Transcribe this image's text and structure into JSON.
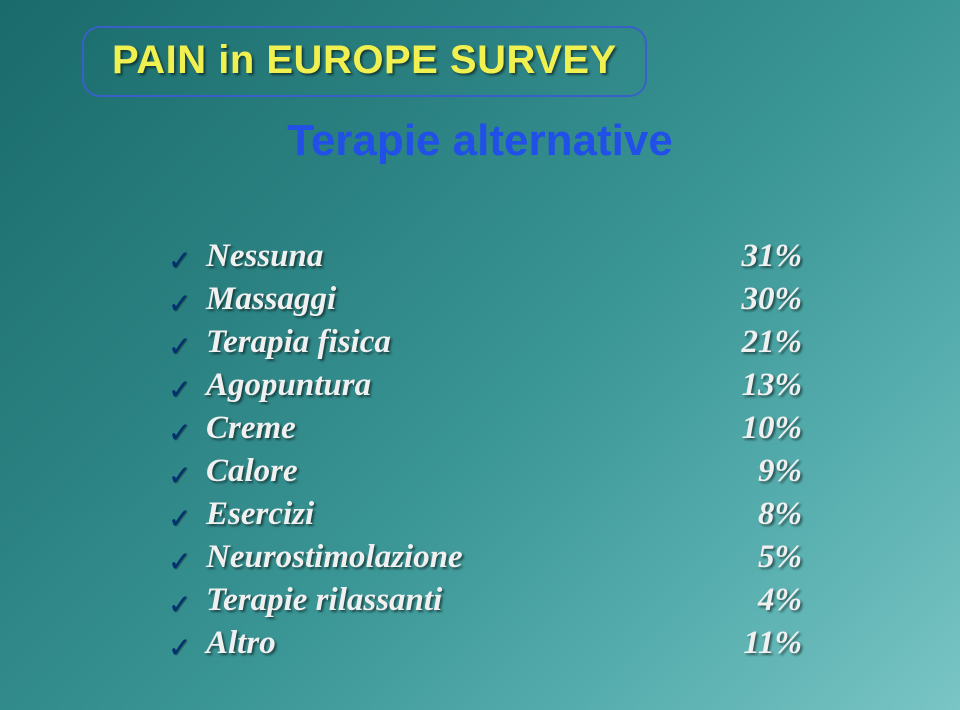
{
  "title": "PAIN in EUROPE SURVEY",
  "subtitle": "Terapie alternative",
  "items": [
    {
      "label": "Nessuna",
      "value": "31%"
    },
    {
      "label": "Massaggi",
      "value": "30%"
    },
    {
      "label": "Terapia fisica",
      "value": "21%"
    },
    {
      "label": "Agopuntura",
      "value": "13%"
    },
    {
      "label": "Creme",
      "value": "10%"
    },
    {
      "label": "Calore",
      "value": "9%"
    },
    {
      "label": "Esercizi",
      "value": "8%"
    },
    {
      "label": "Neurostimolazione",
      "value": "5%"
    },
    {
      "label": "Terapie rilassanti",
      "value": "4%"
    },
    {
      "label": "Altro",
      "value": "11%"
    }
  ],
  "colors": {
    "title_text": "#f0f050",
    "title_border": "#3860c8",
    "subtitle": "#2050e8",
    "item_text": "#f0f0f0",
    "check": "#003070",
    "bg_gradient_from": "#1a6b6b",
    "bg_gradient_to": "#7ac5c5"
  },
  "checkmark_glyph": "✓"
}
